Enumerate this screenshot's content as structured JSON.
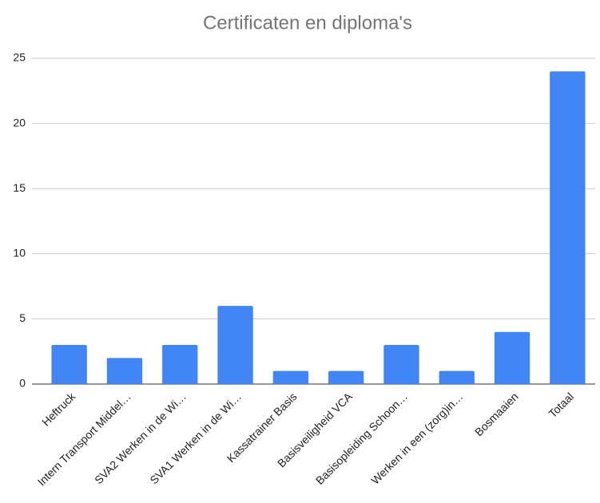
{
  "chart_data": {
    "type": "bar",
    "title": "Certificaten en diploma's",
    "categories": [
      "Heftruck",
      "Intern Transport Middel…",
      "SVA2 Werken in de Wi…",
      "SVA1 Werken in de Wi…",
      "Kassatrainer Basis",
      "Basisveiligheid VCA",
      "Basisopleiding Schoon…",
      "Werken in een (zorg)in…",
      "Bosmaaien",
      "Totaal"
    ],
    "values": [
      3,
      2,
      3,
      6,
      1,
      1,
      3,
      1,
      4,
      24
    ],
    "color": "#4285f4",
    "ylim": [
      0,
      25
    ],
    "yticks": [
      0,
      5,
      10,
      15,
      20,
      25
    ],
    "grid": true
  }
}
